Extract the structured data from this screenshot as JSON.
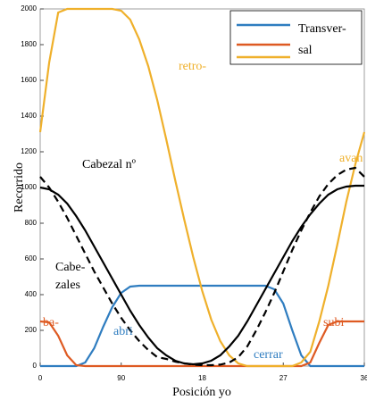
{
  "chart_data": {
    "type": "line",
    "x_label": "Posición yo",
    "y_label": "Recorrido",
    "x": [
      0,
      10,
      20,
      30,
      40,
      50,
      60,
      70,
      80,
      90,
      100,
      110,
      120,
      130,
      140,
      150,
      160,
      170,
      180,
      190,
      200,
      210,
      220,
      230,
      240,
      250,
      260,
      270,
      280,
      290,
      300,
      310,
      320,
      330,
      340,
      350,
      360
    ],
    "series": [
      {
        "name": "Transver-",
        "color": "#2f7dc0",
        "values": [
          0,
          0,
          0,
          0,
          0,
          20,
          100,
          220,
          330,
          410,
          445,
          450,
          450,
          450,
          450,
          450,
          450,
          450,
          450,
          450,
          450,
          450,
          450,
          450,
          450,
          450,
          430,
          350,
          200,
          60,
          0,
          0,
          0,
          0,
          0,
          0,
          0
        ]
      },
      {
        "name": "sal",
        "color": "#de5a22",
        "values": [
          250,
          245,
          170,
          60,
          5,
          0,
          0,
          0,
          0,
          0,
          0,
          0,
          0,
          0,
          0,
          0,
          0,
          0,
          0,
          0,
          0,
          0,
          0,
          0,
          0,
          0,
          0,
          0,
          0,
          0,
          20,
          130,
          230,
          250,
          250,
          250,
          250
        ]
      },
      {
        "color": "#efb02b",
        "values": [
          1310,
          1700,
          1980,
          2000,
          2000,
          2000,
          2000,
          2000,
          2000,
          1990,
          1940,
          1830,
          1680,
          1490,
          1270,
          1040,
          820,
          610,
          420,
          260,
          140,
          60,
          15,
          0,
          0,
          0,
          0,
          0,
          0,
          20,
          80,
          250,
          450,
          680,
          920,
          1130,
          1310
        ]
      },
      {
        "color": "#000000",
        "values": [
          1000,
          990,
          960,
          910,
          840,
          760,
          670,
          580,
          490,
          400,
          310,
          230,
          160,
          100,
          60,
          30,
          15,
          10,
          15,
          30,
          60,
          110,
          170,
          250,
          340,
          430,
          520,
          610,
          700,
          780,
          850,
          910,
          960,
          990,
          1005,
          1010,
          1010
        ]
      },
      {
        "color": "#000000",
        "dash": true,
        "values": [
          1060,
          1000,
          920,
          830,
          730,
          630,
          530,
          440,
          350,
          270,
          200,
          140,
          90,
          50,
          40,
          25,
          15,
          8,
          5,
          5,
          8,
          20,
          50,
          110,
          200,
          300,
          410,
          530,
          650,
          760,
          860,
          950,
          1020,
          1070,
          1100,
          1110,
          1060
        ]
      }
    ],
    "annotations": [
      {
        "text": "Cabezal nº",
        "color": "#000000"
      },
      {
        "text": "Cabe-",
        "color": "#000000"
      },
      {
        "text": "zales",
        "color": "#000000"
      },
      {
        "text": "ba-",
        "color": "#de5a22"
      },
      {
        "text": "abri",
        "color": "#2f7dc0"
      },
      {
        "text": "retro-",
        "color": "#efb02b"
      },
      {
        "text": "avan",
        "color": "#efb02b"
      },
      {
        "text": "subi",
        "color": "#de5a22"
      },
      {
        "text": "cerrar",
        "color": "#2f7dc0"
      }
    ],
    "xlim": [
      0,
      360
    ],
    "xticks": [
      0,
      90,
      {
        "value": 180,
        "label": "18"
      },
      {
        "value": 270,
        "label": "27"
      },
      {
        "value": 360,
        "label": "36"
      }
    ],
    "ylim": [
      0,
      2000
    ],
    "yticks": [
      0,
      200,
      400,
      600,
      800,
      1000,
      1200,
      1400,
      1600,
      1800,
      2000
    ],
    "legend": "top-right"
  }
}
